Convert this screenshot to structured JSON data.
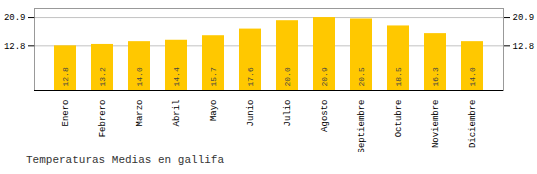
{
  "chart_data": {
    "type": "bar",
    "title": "Temperaturas Medias en gallifa",
    "categories": [
      "Enero",
      "Febrero",
      "Marzo",
      "Abril",
      "Mayo",
      "Junio",
      "Julio",
      "Agosto",
      "Septiembre",
      "Octubre",
      "Noviembre",
      "Diciembre"
    ],
    "values": [
      12.8,
      13.2,
      14.0,
      14.4,
      15.7,
      17.6,
      20.0,
      20.9,
      20.5,
      18.5,
      16.3,
      14.0
    ],
    "value_labels": [
      "12.8",
      "13.2",
      "14.0",
      "14.4",
      "15.7",
      "17.6",
      "20.0",
      "20.9",
      "20.5",
      "18.5",
      "16.3",
      "14.0"
    ],
    "color": "#FFC800",
    "ylim": [
      0,
      23.5
    ],
    "yticks": [
      12.8,
      20.9
    ],
    "grid": true,
    "data_labels": true
  }
}
